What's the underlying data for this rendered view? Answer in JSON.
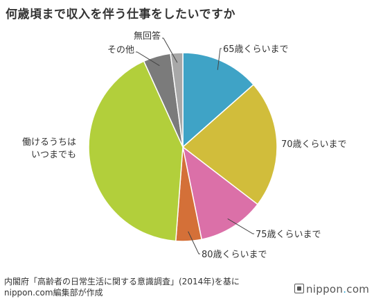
{
  "title": "何歳頃まで収入を伴う仕事をしたいですか",
  "chart_data": {
    "type": "pie",
    "slices": [
      {
        "label": "65歳くらいまで",
        "value": 13.5,
        "color": "#3fa3c6"
      },
      {
        "label": "70歳くらいまで",
        "value": 21.9,
        "color": "#d1bd3b"
      },
      {
        "label": "75歳くらいまで",
        "value": 11.4,
        "color": "#db70a8"
      },
      {
        "label": "80歳くらいまで",
        "value": 4.4,
        "color": "#d47038"
      },
      {
        "label": "働けるうちは\nいつまでも",
        "value": 42.0,
        "color": "#b2cf3b"
      },
      {
        "label": "その他",
        "value": 4.7,
        "color": "#7b7b7b"
      },
      {
        "label": "無回答",
        "value": 2.1,
        "color": "#a8a8a8"
      }
    ]
  },
  "source": {
    "line1": "内閣府「高齢者の日常生活に関する意識調査」(2014年)を基に",
    "line2": "nippon.com編集部が作成"
  },
  "brand": {
    "name": "nippon",
    "dot": ".",
    "suffix": "com"
  }
}
